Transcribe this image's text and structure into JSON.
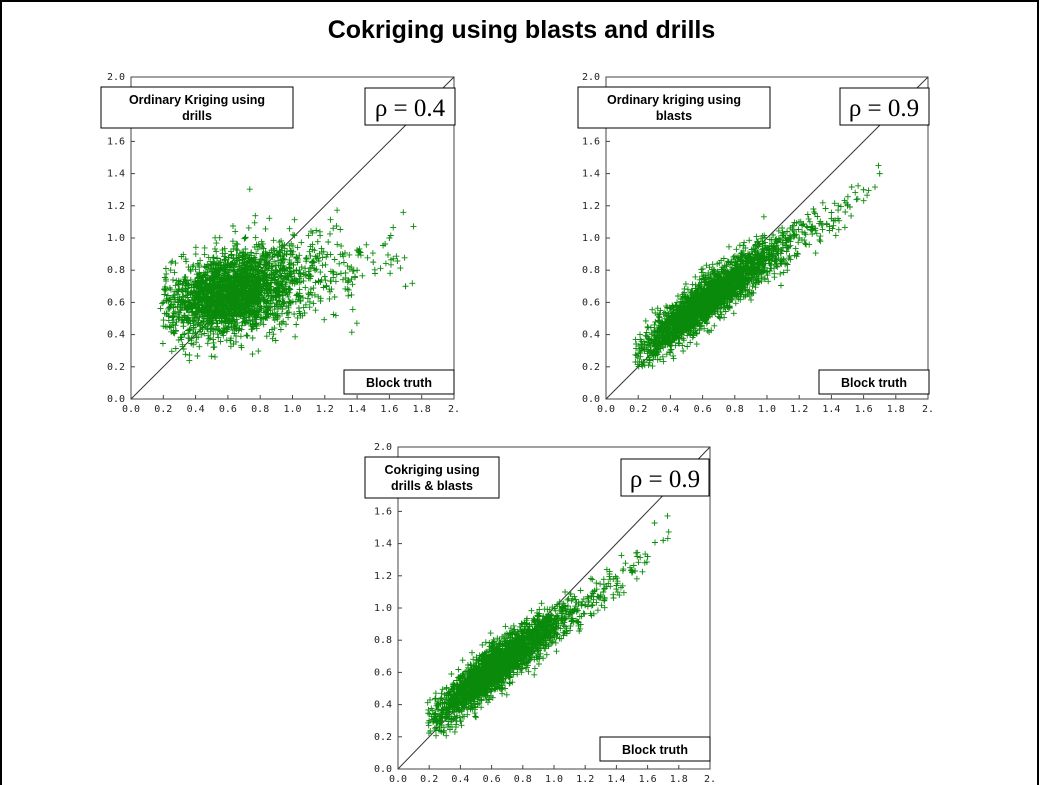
{
  "slide": {
    "title": "Cokriging using blasts and drills"
  },
  "chart_data": [
    {
      "type": "scatter",
      "title": "Ordinary Kriging using drills",
      "annotation": "ρ = 0.4",
      "xlabel": "Block truth",
      "xlim": [
        0,
        2
      ],
      "ylim": [
        0,
        2
      ],
      "x_ticks": [
        "0.0",
        "0.2",
        "0.4",
        "0.6",
        "0.8",
        "1.0",
        "1.2",
        "1.4",
        "1.6",
        "1.8",
        "2."
      ],
      "y_ticks": [
        "0.0",
        "0.2",
        "0.4",
        "0.6",
        "0.8",
        "1.0",
        "1.2",
        "1.4",
        "1.6",
        "2.0"
      ],
      "marker_color": "#0a8a0a",
      "reference_line": "y = x",
      "correlation": 0.4,
      "series": [
        {
          "x": [
            0.2,
            0.3,
            0.4,
            0.5,
            0.6,
            0.7,
            0.8,
            0.9,
            1.0,
            1.1,
            1.2,
            1.3,
            1.4,
            1.5,
            1.6,
            1.7
          ],
          "y": [
            0.6,
            0.62,
            0.64,
            0.66,
            0.68,
            0.69,
            0.7,
            0.72,
            0.73,
            0.75,
            0.76,
            0.78,
            0.8,
            0.85,
            1.0,
            0.7
          ]
        }
      ]
    },
    {
      "type": "scatter",
      "title": "Ordinary kriging using blasts",
      "annotation": "ρ = 0.9",
      "xlabel": "Block truth",
      "xlim": [
        0,
        2
      ],
      "ylim": [
        0,
        2
      ],
      "x_ticks": [
        "0.0",
        "0.2",
        "0.4",
        "0.6",
        "0.8",
        "1.0",
        "1.2",
        "1.4",
        "1.6",
        "1.8",
        "2."
      ],
      "y_ticks": [
        "0.0",
        "0.2",
        "0.4",
        "0.6",
        "0.8",
        "1.0",
        "1.2",
        "1.4",
        "1.6",
        "2.0"
      ],
      "marker_color": "#0a8a0a",
      "reference_line": "y = x",
      "correlation": 0.9,
      "series": [
        {
          "x": [
            0.2,
            0.3,
            0.4,
            0.5,
            0.6,
            0.7,
            0.8,
            0.9,
            1.0,
            1.1,
            1.2,
            1.3,
            1.4,
            1.5,
            1.6,
            1.7
          ],
          "y": [
            0.28,
            0.36,
            0.44,
            0.52,
            0.6,
            0.67,
            0.74,
            0.81,
            0.88,
            0.94,
            1.0,
            1.06,
            1.12,
            1.2,
            1.3,
            1.4
          ]
        }
      ]
    },
    {
      "type": "scatter",
      "title": "Cokriging using drills & blasts",
      "annotation": "ρ = 0.9",
      "xlabel": "Block truth",
      "xlim": [
        0,
        2
      ],
      "ylim": [
        0,
        2
      ],
      "x_ticks": [
        "0.0",
        "0.2",
        "0.4",
        "0.6",
        "0.8",
        "1.0",
        "1.2",
        "1.4",
        "1.6",
        "1.8",
        "2."
      ],
      "y_ticks": [
        "0.0",
        "0.2",
        "0.4",
        "0.6",
        "0.8",
        "1.0",
        "1.2",
        "1.4",
        "1.6",
        "2.0"
      ],
      "marker_color": "#0a8a0a",
      "reference_line": "y = x",
      "correlation": 0.9,
      "series": [
        {
          "x": [
            0.2,
            0.3,
            0.4,
            0.5,
            0.6,
            0.7,
            0.8,
            0.9,
            1.0,
            1.1,
            1.2,
            1.3,
            1.4,
            1.5,
            1.6,
            1.7
          ],
          "y": [
            0.3,
            0.38,
            0.46,
            0.54,
            0.62,
            0.69,
            0.76,
            0.83,
            0.9,
            0.96,
            1.02,
            1.08,
            1.14,
            1.22,
            1.32,
            1.42
          ]
        }
      ]
    }
  ]
}
